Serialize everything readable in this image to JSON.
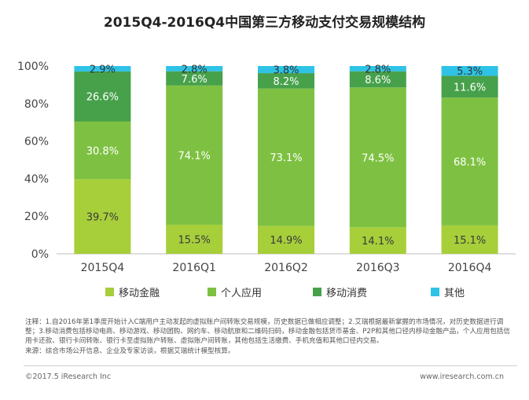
{
  "title": "2015Q4-2016Q4中国第三方移动支付交易规模结构",
  "chart_data": {
    "type": "bar",
    "stacked": true,
    "categories": [
      "2015Q4",
      "2016Q1",
      "2016Q2",
      "2016Q3",
      "2016Q4"
    ],
    "series": [
      {
        "name": "移动金融",
        "color": "#a6cf3a",
        "values": [
          39.7,
          15.5,
          14.9,
          14.1,
          15.1
        ],
        "labels": [
          "39.7%",
          "15.5%",
          "14.9%",
          "14.1%",
          "15.1%"
        ]
      },
      {
        "name": "个人应用",
        "color": "#7ec142",
        "values": [
          30.8,
          74.1,
          73.1,
          74.5,
          68.1
        ],
        "labels": [
          "30.8%",
          "74.1%",
          "73.1%",
          "74.5%",
          "68.1%"
        ]
      },
      {
        "name": "移动消费",
        "color": "#47a14b",
        "values": [
          26.6,
          7.6,
          8.2,
          8.6,
          11.6
        ],
        "labels": [
          "26.6%",
          "7.6%",
          "8.2%",
          "8.6%",
          "11.6%"
        ]
      },
      {
        "name": "其他",
        "color": "#2ec3e6",
        "values": [
          2.9,
          2.8,
          3.8,
          2.8,
          5.3
        ],
        "labels": [
          "2.9%",
          "2.8%",
          "3.8%",
          "2.8%",
          "5.3%"
        ]
      }
    ],
    "yticks": [
      "0%",
      "20%",
      "40%",
      "60%",
      "80%",
      "100%"
    ],
    "ylim": [
      0,
      100
    ],
    "grid": false,
    "legend_position": "bottom"
  },
  "footnote": {
    "note": "注释：1.自2016年第1季度开始计入C端用户主动发起的虚拟账户间转账交易规模，历史数据已做相应调整；2.艾瑞根据最新掌握的市场情况，对历史数据进行调整；3.移动消费包括移动电商、移动游戏、移动团购、网约车、移动航旅和二维码扫码，移动金融包括货币基金、P2P和其他口径内移动金融产品，个人应用包括信用卡还款、银行卡间转账、银行卡至虚拟账户转账、虚拟账户间转账，其他包括生活缴费、手机充值和其他口径内交易。",
    "source": "来源：综合市场公开信息、企业及专家访谈，根据艾瑞统计模型核算。"
  },
  "copyright": "©2017.5 iResearch Inc",
  "website": "www.iresearch.com.cn"
}
